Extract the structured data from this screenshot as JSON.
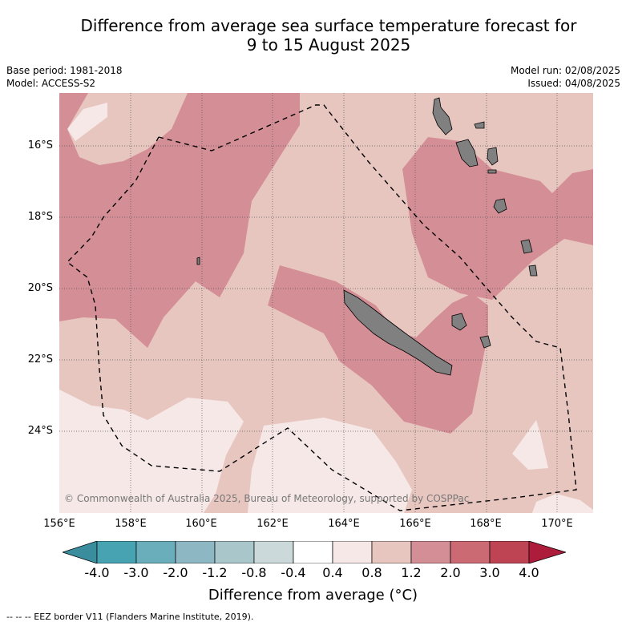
{
  "title": {
    "line1": "Difference from average sea surface temperature forecast for",
    "line2": "9 to 15 August 2025"
  },
  "meta": {
    "base_period": "Base period: 1981-2018",
    "model": "Model: ACCESS-S2",
    "model_run": "Model run: 02/08/2025",
    "issued": "Issued: 04/08/2025"
  },
  "map": {
    "lat_labels": [
      "16°S",
      "18°S",
      "20°S",
      "22°S",
      "24°S"
    ],
    "lon_labels": [
      "156°E",
      "158°E",
      "160°E",
      "162°E",
      "164°E",
      "166°E",
      "168°E",
      "170°E"
    ],
    "credit": "© Commonwealth of Australia 2025, Bureau of Meteorology, supported by COSPPac",
    "colors": {
      "level_0_4_0_8": "#f5e8e6",
      "level_0_8_1_2": "#e8c6c0",
      "level_1_2_2_0": "#d48e96",
      "land": "#808080",
      "grid": "#555555"
    }
  },
  "colorbar": {
    "labels": [
      "-4.0",
      "-3.0",
      "-2.0",
      "-1.2",
      "-0.8",
      "-0.4",
      "0.4",
      "0.8",
      "1.2",
      "2.0",
      "3.0",
      "4.0"
    ],
    "colors": [
      "#3a8d9c",
      "#47a3b2",
      "#6aaebb",
      "#8db8c3",
      "#a9c7cb",
      "#cbd9db",
      "#ffffff",
      "#f5e8e6",
      "#e8c6c0",
      "#d48e96",
      "#cc6a74",
      "#be4353",
      "#ad1d3b"
    ],
    "title": "Difference from average (°C)"
  },
  "legend": {
    "eez": "--  --  -- EEZ border V11 (Flanders Marine Institute, 2019)."
  }
}
